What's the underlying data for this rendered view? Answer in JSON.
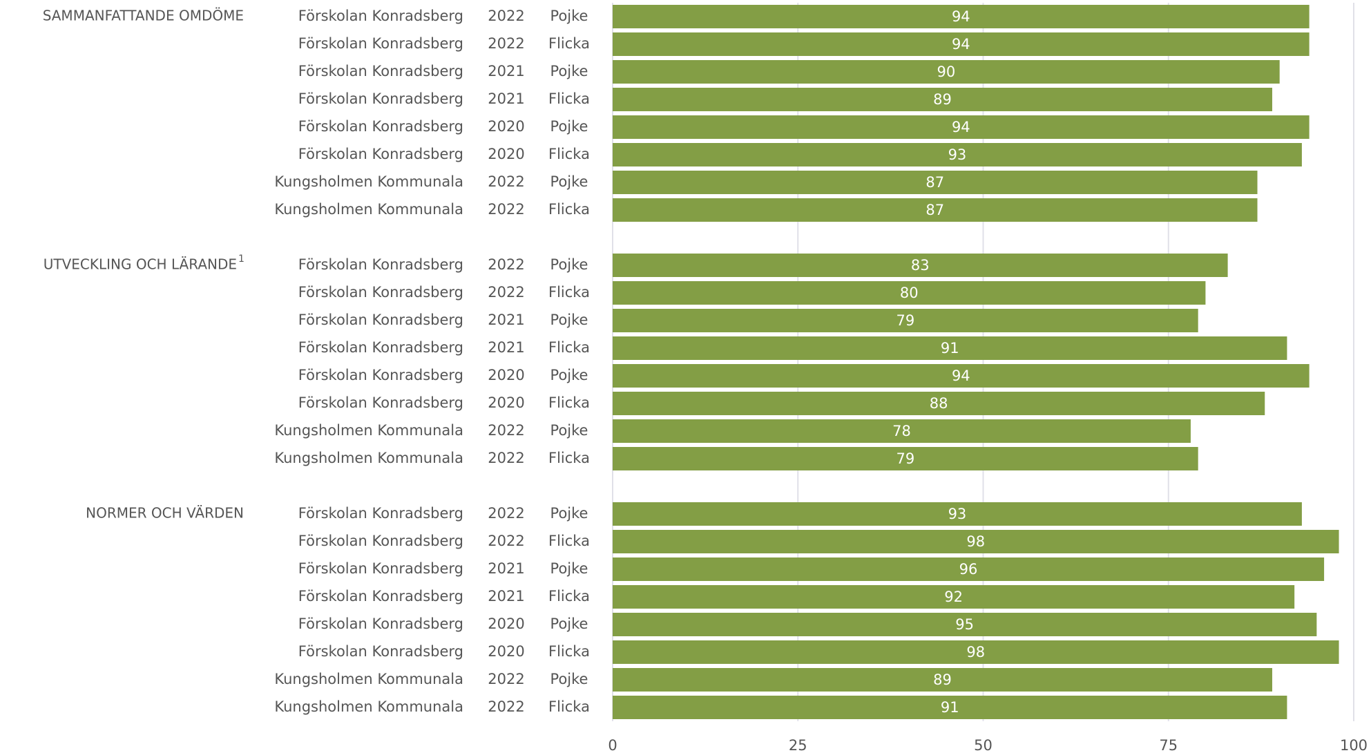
{
  "chart_data": {
    "type": "bar",
    "color": "#839e45",
    "xlim": [
      0,
      100
    ],
    "xticks": [
      0,
      25,
      50,
      75,
      100
    ],
    "grid": true,
    "groups": [
      {
        "name": "SAMMANFATTANDE OMDÖME",
        "rows": [
          {
            "school": "Förskolan Konradsberg",
            "year": "2022",
            "gender": "Pojke",
            "value": 94
          },
          {
            "school": "Förskolan Konradsberg",
            "year": "2022",
            "gender": "Flicka",
            "value": 94
          },
          {
            "school": "Förskolan Konradsberg",
            "year": "2021",
            "gender": "Pojke",
            "value": 90
          },
          {
            "school": "Förskolan Konradsberg",
            "year": "2021",
            "gender": "Flicka",
            "value": 89
          },
          {
            "school": "Förskolan Konradsberg",
            "year": "2020",
            "gender": "Pojke",
            "value": 94
          },
          {
            "school": "Förskolan Konradsberg",
            "year": "2020",
            "gender": "Flicka",
            "value": 93
          },
          {
            "school": "Kungsholmen Kommunala",
            "year": "2022",
            "gender": "Pojke",
            "value": 87
          },
          {
            "school": "Kungsholmen Kommunala",
            "year": "2022",
            "gender": "Flicka",
            "value": 87
          }
        ]
      },
      {
        "name": "UTVECKLING OCH LÄRANDE",
        "footnote_mark": "1",
        "rows": [
          {
            "school": "Förskolan Konradsberg",
            "year": "2022",
            "gender": "Pojke",
            "value": 83
          },
          {
            "school": "Förskolan Konradsberg",
            "year": "2022",
            "gender": "Flicka",
            "value": 80
          },
          {
            "school": "Förskolan Konradsberg",
            "year": "2021",
            "gender": "Pojke",
            "value": 79
          },
          {
            "school": "Förskolan Konradsberg",
            "year": "2021",
            "gender": "Flicka",
            "value": 91
          },
          {
            "school": "Förskolan Konradsberg",
            "year": "2020",
            "gender": "Pojke",
            "value": 94
          },
          {
            "school": "Förskolan Konradsberg",
            "year": "2020",
            "gender": "Flicka",
            "value": 88
          },
          {
            "school": "Kungsholmen Kommunala",
            "year": "2022",
            "gender": "Pojke",
            "value": 78
          },
          {
            "school": "Kungsholmen Kommunala",
            "year": "2022",
            "gender": "Flicka",
            "value": 79
          }
        ]
      },
      {
        "name": "NORMER OCH VÄRDEN",
        "rows": [
          {
            "school": "Förskolan Konradsberg",
            "year": "2022",
            "gender": "Pojke",
            "value": 93
          },
          {
            "school": "Förskolan Konradsberg",
            "year": "2022",
            "gender": "Flicka",
            "value": 98
          },
          {
            "school": "Förskolan Konradsberg",
            "year": "2021",
            "gender": "Pojke",
            "value": 96
          },
          {
            "school": "Förskolan Konradsberg",
            "year": "2021",
            "gender": "Flicka",
            "value": 92
          },
          {
            "school": "Förskolan Konradsberg",
            "year": "2020",
            "gender": "Pojke",
            "value": 95
          },
          {
            "school": "Förskolan Konradsberg",
            "year": "2020",
            "gender": "Flicka",
            "value": 98
          },
          {
            "school": "Kungsholmen Kommunala",
            "year": "2022",
            "gender": "Pojke",
            "value": 89
          },
          {
            "school": "Kungsholmen Kommunala",
            "year": "2022",
            "gender": "Flicka",
            "value": 91
          }
        ]
      }
    ]
  }
}
